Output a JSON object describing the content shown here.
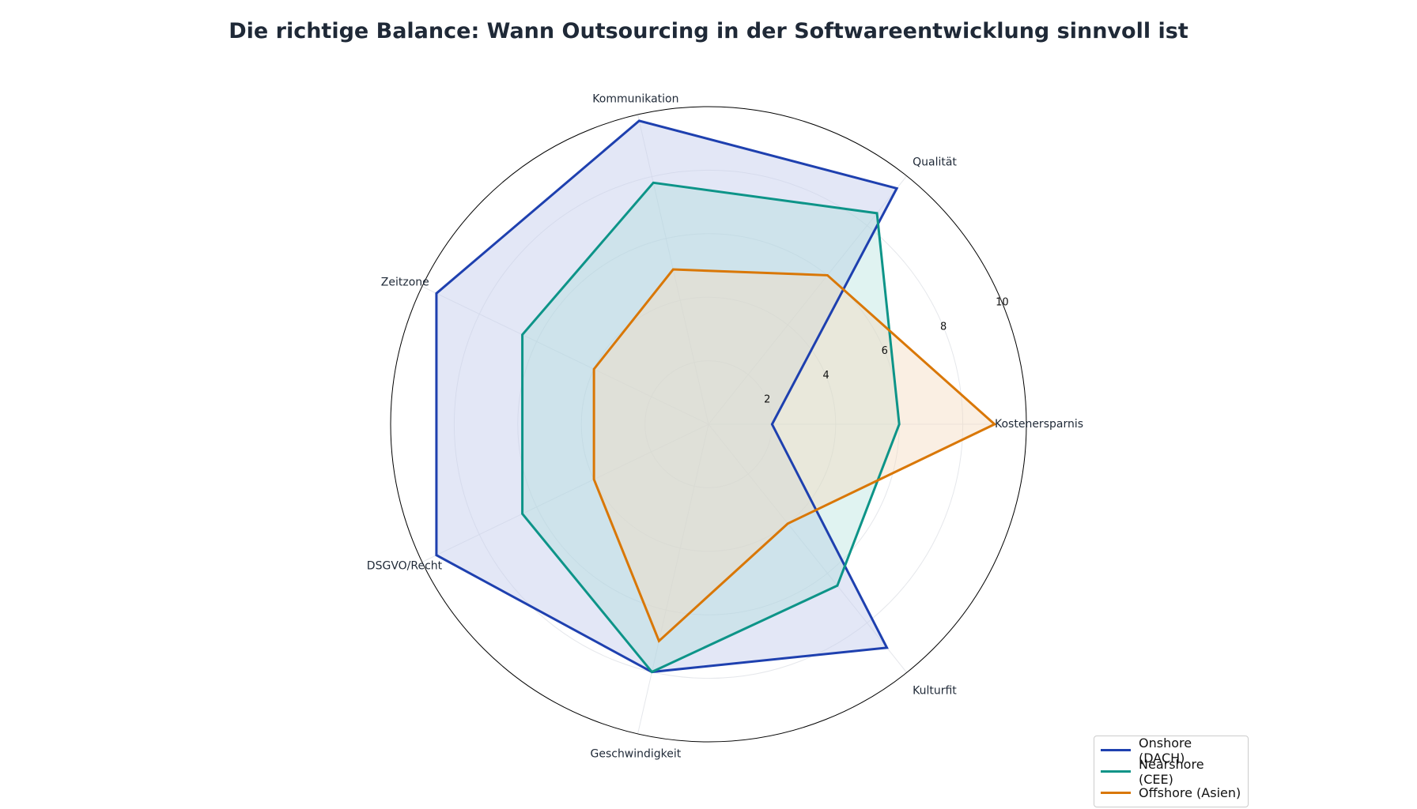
{
  "chart_data": {
    "type": "radar",
    "title": "Die richtige Balance: Wann Outsourcing in der Softwareentwicklung sinnvoll ist",
    "categories": [
      "Kostenersparnis",
      "Qualität",
      "Kommunikation",
      "Zeitzone",
      "DSGVO/Recht",
      "Geschwindigkeit",
      "Kulturfit"
    ],
    "rlim": [
      0,
      10
    ],
    "rticks": [
      "2",
      "4",
      "6",
      "8",
      "10"
    ],
    "grid": true,
    "legend_position": "bottom-right",
    "series": [
      {
        "name": "Onshore (DACH)",
        "color": "#1e40af",
        "fill": "#c7d0ee",
        "fill_opacity": 0.5,
        "values": [
          2,
          9.5,
          9.8,
          9.5,
          9.5,
          8,
          9
        ]
      },
      {
        "name": "Nearshore (CEE)",
        "color": "#0d9488",
        "fill": "#a7dcd6",
        "fill_opacity": 0.35,
        "values": [
          6,
          8.5,
          7.8,
          6.5,
          6.5,
          8,
          6.5
        ]
      },
      {
        "name": "Offshore (Asien)",
        "color": "#d97706",
        "fill": "#f3dcc0",
        "fill_opacity": 0.45,
        "values": [
          9,
          6,
          5,
          4,
          4,
          7,
          4
        ]
      }
    ]
  }
}
